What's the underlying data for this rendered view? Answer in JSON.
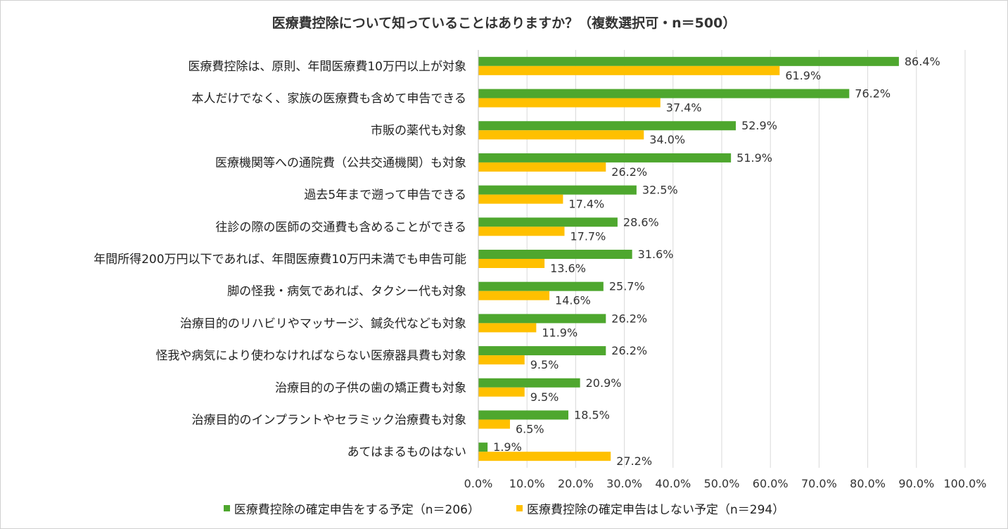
{
  "chart_data": {
    "type": "bar",
    "orientation": "horizontal",
    "title": "医療費控除について知っていることはありますか？（複数選択可・n＝500）",
    "categories": [
      "医療費控除は、原則、年間医療費10万円以上が対象",
      "本人だけでなく、家族の医療費も含めて申告できる",
      "市販の薬代も対象",
      "医療機関等への通院費（公共交通機関）も対象",
      "過去5年まで遡って申告できる",
      "往診の際の医師の交通費も含めることができる",
      "年間所得200万円以下であれば、年間医療費10万円未満でも申告可能",
      "脚の怪我・病気であれば、タクシー代も対象",
      "治療目的のリハビリやマッサージ、鍼灸代なども対象",
      "怪我や病気により使わなければならない医療器具費も対象",
      "治療目的の子供の歯の矯正費も対象",
      "治療目的のインプラントやセラミック治療費も対象",
      "あてはまるものはない"
    ],
    "series": [
      {
        "name": "医療費控除の確定申告をする予定（n＝206）",
        "color": "#4ea72e",
        "values": [
          86.4,
          76.2,
          52.9,
          51.9,
          32.5,
          28.6,
          31.6,
          25.7,
          26.2,
          26.2,
          20.9,
          18.5,
          1.9
        ],
        "labels": [
          "86.4%",
          "76.2%",
          "52.9%",
          "51.9%",
          "32.5%",
          "28.6%",
          "31.6%",
          "25.7%",
          "26.2%",
          "26.2%",
          "20.9%",
          "18.5%",
          "1.9%"
        ]
      },
      {
        "name": "医療費控除の確定申告はしない予定（n＝294）",
        "color": "#ffc000",
        "values": [
          61.9,
          37.4,
          34.0,
          26.2,
          17.4,
          17.7,
          13.6,
          14.6,
          11.9,
          9.5,
          9.5,
          6.5,
          27.2
        ],
        "labels": [
          "61.9%",
          "37.4%",
          "34.0%",
          "26.2%",
          "17.4%",
          "17.7%",
          "13.6%",
          "14.6%",
          "11.9%",
          "9.5%",
          "9.5%",
          "6.5%",
          "27.2%"
        ]
      }
    ],
    "xlim": [
      0,
      100
    ],
    "xticks": [
      0,
      10,
      20,
      30,
      40,
      50,
      60,
      70,
      80,
      90,
      100
    ],
    "xtick_labels": [
      "0.0%",
      "10.0%",
      "20.0%",
      "30.0%",
      "40.0%",
      "50.0%",
      "60.0%",
      "70.0%",
      "80.0%",
      "90.0%",
      "100.0%"
    ],
    "grid": true,
    "legend_position": "bottom"
  }
}
